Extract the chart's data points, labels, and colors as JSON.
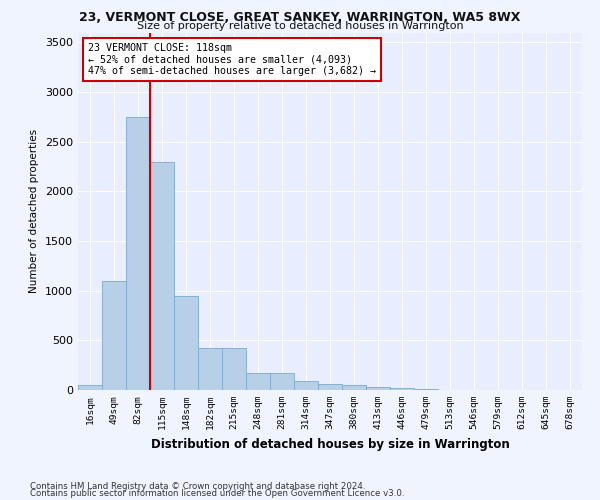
{
  "title1": "23, VERMONT CLOSE, GREAT SANKEY, WARRINGTON, WA5 8WX",
  "title2": "Size of property relative to detached houses in Warrington",
  "xlabel": "Distribution of detached houses by size in Warrington",
  "ylabel": "Number of detached properties",
  "categories": [
    "16sqm",
    "49sqm",
    "82sqm",
    "115sqm",
    "148sqm",
    "182sqm",
    "215sqm",
    "248sqm",
    "281sqm",
    "314sqm",
    "347sqm",
    "380sqm",
    "413sqm",
    "446sqm",
    "479sqm",
    "513sqm",
    "546sqm",
    "579sqm",
    "612sqm",
    "645sqm",
    "678sqm"
  ],
  "values": [
    50,
    1100,
    2750,
    2300,
    950,
    420,
    420,
    170,
    170,
    90,
    60,
    55,
    30,
    18,
    10,
    5,
    3,
    2,
    1,
    1,
    0
  ],
  "bar_color": "#b8cfe8",
  "bar_edge_color": "#7aaad0",
  "vline_x": 2.5,
  "vline_color": "#cc0000",
  "annotation_text": "23 VERMONT CLOSE: 118sqm\n← 52% of detached houses are smaller (4,093)\n47% of semi-detached houses are larger (3,682) →",
  "annotation_box_color": "#ffffff",
  "annotation_box_edge": "#cc0000",
  "ylim": [
    0,
    3600
  ],
  "yticks": [
    0,
    500,
    1000,
    1500,
    2000,
    2500,
    3000,
    3500
  ],
  "footer1": "Contains HM Land Registry data © Crown copyright and database right 2024.",
  "footer2": "Contains public sector information licensed under the Open Government Licence v3.0.",
  "bg_color": "#f0f4ff",
  "plot_bg": "#e8eeff"
}
